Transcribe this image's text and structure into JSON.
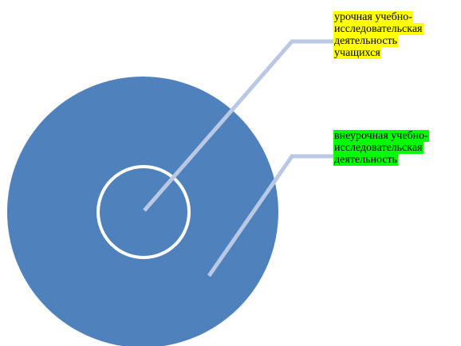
{
  "labels": {
    "inner": {
      "lines": [
        "урочная учебно-",
        "исследовательская",
        "деятельность",
        "учащихся"
      ],
      "highlight": "#ffff00"
    },
    "outer": {
      "lines": [
        "внеурочная учебно-",
        "исследовательская",
        "деятельность"
      ],
      "highlight": "#00ff00"
    }
  },
  "colors": {
    "outer_circle_fill": "#4f81bd",
    "inner_circle_stroke": "#ffffff",
    "leader_line": "#b9c9e4"
  }
}
